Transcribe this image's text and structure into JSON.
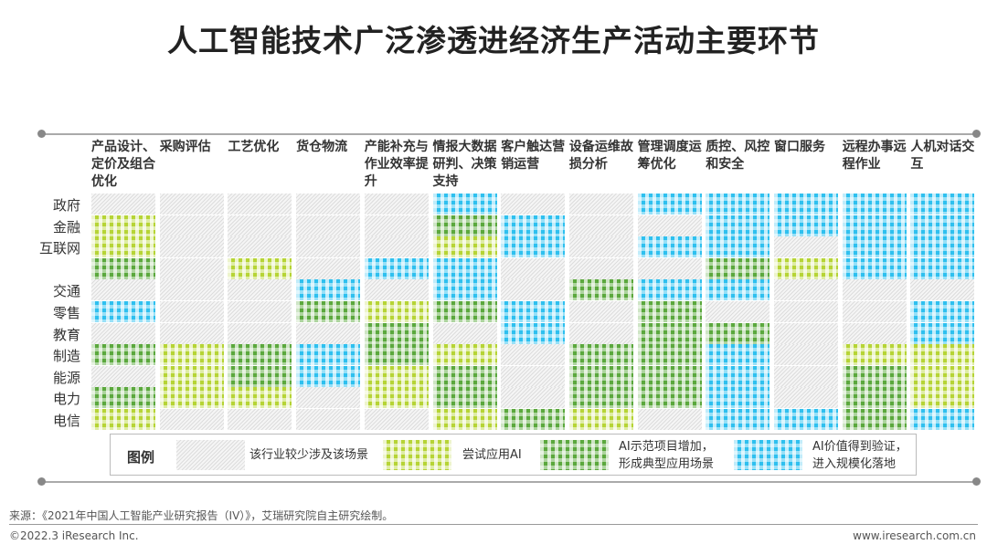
{
  "title": "人工智能技术广泛渗透进经济生产活动主要环节",
  "columns": [
    "产品设计、定价及组合优化",
    "采购评估",
    "工艺优化",
    "货仓物流",
    "产能补充与作业效率提升",
    "情报大数据研判、决策支持",
    "客户触达营销运营",
    "设备运维故损分析",
    "管理调度运筹优化",
    "质控、风控和安全",
    "窗口服务",
    "远程办事远程作业",
    "人机对话交互"
  ],
  "rows": [
    "政府",
    "金融",
    "互联网",
    "",
    "交通",
    "零售",
    "教育",
    "制造",
    "能源",
    "电力",
    "电信"
  ],
  "levels": {
    "N": "该行业较少涉及该场景",
    "L": "尝试应用AI",
    "G": "AI示范项目增加，形成典型应用场景",
    "B": "AI价值得到验证，进入规模化落地"
  },
  "colors": {
    "L": "#b6d435",
    "G": "#5ba83d",
    "B": "#2ec0ef",
    "N": "#dddddd"
  },
  "matrix": [
    [
      "N",
      "N",
      "N",
      "N",
      "N",
      "B",
      "N",
      "N",
      "B",
      "B",
      "B",
      "B",
      "B"
    ],
    [
      "L",
      "N",
      "N",
      "N",
      "N",
      "G",
      "B",
      "N",
      "N",
      "B",
      "B",
      "B",
      "B"
    ],
    [
      "L",
      "N",
      "N",
      "N",
      "N",
      "L",
      "B",
      "N",
      "B",
      "B",
      "N",
      "B",
      "B"
    ],
    [
      "G",
      "N",
      "L",
      "N",
      "B",
      "B",
      "N",
      "N",
      "N",
      "G",
      "L",
      "B",
      "B"
    ],
    [
      "N",
      "N",
      "N",
      "B",
      "N",
      "B",
      "N",
      "G",
      "B",
      "B",
      "N",
      "N",
      "N"
    ],
    [
      "B",
      "N",
      "N",
      "G",
      "L",
      "G",
      "B",
      "N",
      "G",
      "N",
      "N",
      "N",
      "B"
    ],
    [
      "N",
      "N",
      "N",
      "N",
      "G",
      "N",
      "B",
      "N",
      "G",
      "G",
      "N",
      "N",
      "B"
    ],
    [
      "G",
      "L",
      "G",
      "B",
      "G",
      "L",
      "N",
      "G",
      "G",
      "B",
      "N",
      "L",
      "L"
    ],
    [
      "N",
      "L",
      "G",
      "B",
      "L",
      "G",
      "N",
      "G",
      "G",
      "B",
      "N",
      "G",
      "L"
    ],
    [
      "G",
      "L",
      "L",
      "N",
      "L",
      "G",
      "N",
      "G",
      "G",
      "B",
      "N",
      "G",
      "L"
    ],
    [
      "L",
      "N",
      "N",
      "N",
      "N",
      "L",
      "G",
      "L",
      "N",
      "B",
      "B",
      "G",
      "B"
    ]
  ],
  "legend": {
    "title": "图例",
    "items": [
      {
        "code": "N",
        "lines": [
          "该行业较少涉及该场景"
        ]
      },
      {
        "code": "L",
        "lines": [
          "尝试应用AI"
        ]
      },
      {
        "code": "G",
        "lines": [
          "AI示范项目增加，",
          "形成典型应用场景"
        ]
      },
      {
        "code": "B",
        "lines": [
          "AI价值得到验证，",
          "进入规模化落地"
        ]
      }
    ]
  },
  "footer": {
    "source": "来源：《2021年中国人工智能产业研究报告（IV）》，艾瑞研究院自主研究绘制。",
    "copyright": "©2022.3 iResearch Inc.",
    "website": "www.iresearch.com.cn"
  }
}
